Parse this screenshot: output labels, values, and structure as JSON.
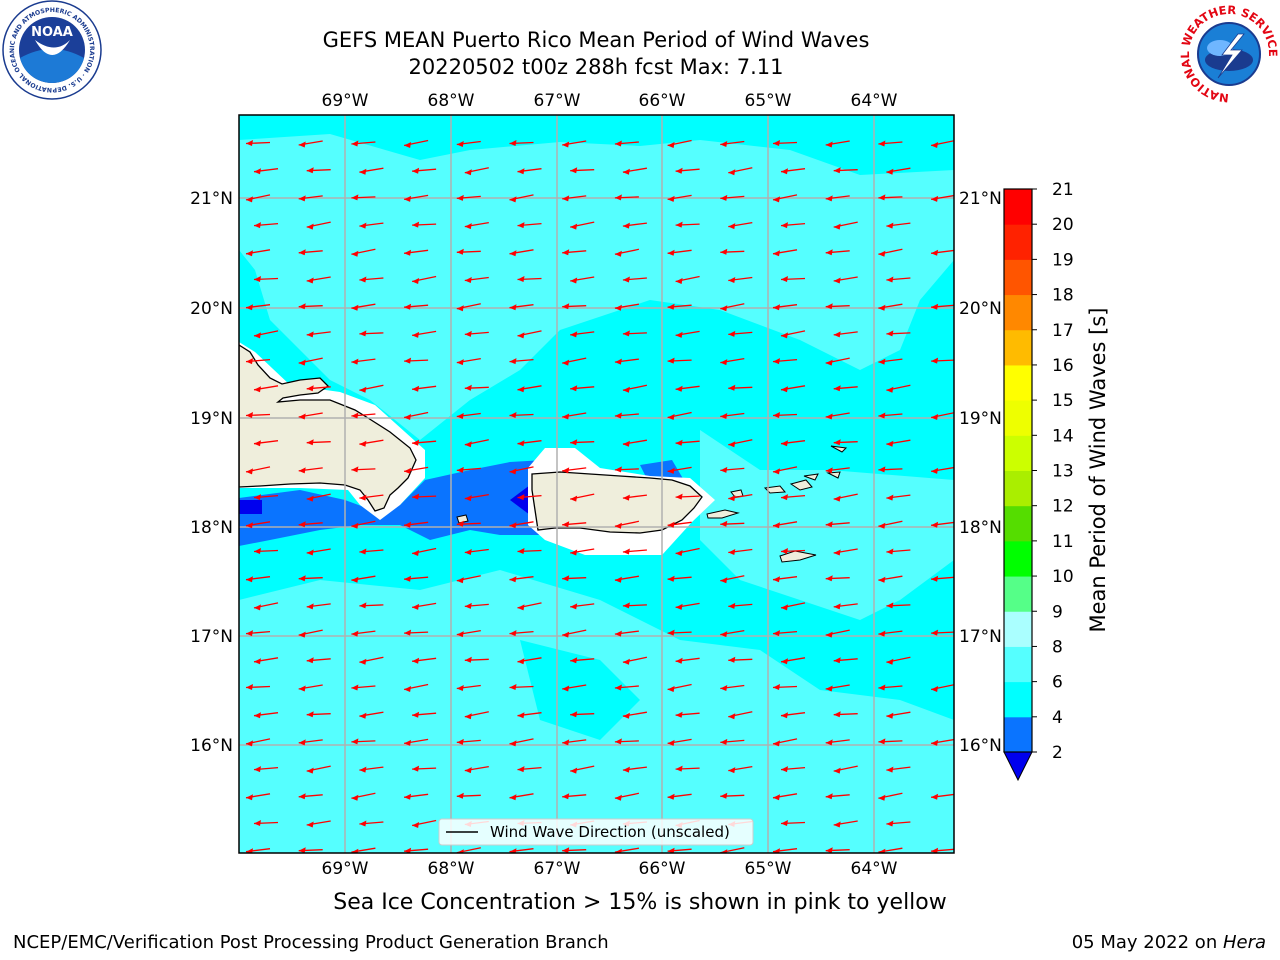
{
  "title_line1": "GEFS MEAN Puerto Rico Mean Period of Wind Waves",
  "title_line2": "20220502 t00z 288h fcst   Max: 7.11",
  "subtitle": "Sea Ice Concentration > 15% is shown in pink to yellow",
  "footer_left": "NCEP/EMC/Verification Post Processing Product Generation Branch",
  "footer_right_prefix": "05 May 2022 on ",
  "footer_right_host": "Hera",
  "legend_label": "Wind Wave Direction (unscaled)",
  "logos": {
    "noaa_text": "NOAA",
    "noaa_ring": "NATIONAL OCEANIC AND ATMOSPHERIC ADMINISTRATION · U.S. DEPARTMENT OF COMMERCE",
    "nws_ring": "NATIONAL WEATHER SERVICE"
  },
  "map": {
    "lon_ticks": [
      "69°W",
      "68°W",
      "67°W",
      "66°W",
      "65°W",
      "64°W"
    ],
    "lat_ticks": [
      "21°N",
      "20°N",
      "19°N",
      "18°N",
      "17°N",
      "16°N"
    ],
    "lon_values": [
      -69,
      -68,
      -67,
      -66,
      -65,
      -64
    ],
    "lat_values": [
      21,
      20,
      19,
      18,
      17,
      16
    ],
    "lon_range": [
      -70,
      -63.25
    ],
    "lat_range": [
      15,
      21.75
    ],
    "grid": true,
    "land_color": "#efeedc",
    "arrow_color": "#ff0000",
    "arrow_direction": "toward west-southwest"
  },
  "colorbar": {
    "title": "Mean Period of Wind Waves [s]",
    "labels": [
      "2",
      "4",
      "6",
      "8",
      "9",
      "10",
      "11",
      "12",
      "13",
      "14",
      "15",
      "16",
      "17",
      "18",
      "19",
      "20",
      "21"
    ],
    "bins": [
      {
        "from": 2,
        "to": 4,
        "color": "#0a74ff"
      },
      {
        "from": 4,
        "to": 6,
        "color": "#00ffff"
      },
      {
        "from": 6,
        "to": 8,
        "color": "#55ffff"
      },
      {
        "from": 8,
        "to": 9,
        "color": "#aaffff"
      },
      {
        "from": 9,
        "to": 10,
        "color": "#55ff88"
      },
      {
        "from": 10,
        "to": 11,
        "color": "#00ff00"
      },
      {
        "from": 11,
        "to": 12,
        "color": "#55dd00"
      },
      {
        "from": 12,
        "to": 13,
        "color": "#aaee00"
      },
      {
        "from": 13,
        "to": 14,
        "color": "#ccff00"
      },
      {
        "from": 14,
        "to": 15,
        "color": "#eeff00"
      },
      {
        "from": 15,
        "to": 16,
        "color": "#ffff00"
      },
      {
        "from": 16,
        "to": 17,
        "color": "#ffbb00"
      },
      {
        "from": 17,
        "to": 18,
        "color": "#ff8800"
      },
      {
        "from": 18,
        "to": 19,
        "color": "#ff5500"
      },
      {
        "from": 19,
        "to": 20,
        "color": "#ff2200"
      },
      {
        "from": 20,
        "to": 21,
        "color": "#ff0000"
      }
    ],
    "extend_min_color": "#0000ee"
  }
}
